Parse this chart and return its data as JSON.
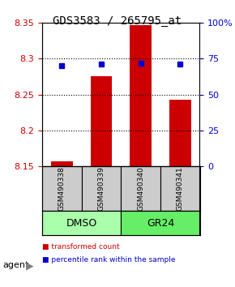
{
  "title": "GDS3583 / 265795_at",
  "samples": [
    "GSM490338",
    "GSM490339",
    "GSM490340",
    "GSM490341"
  ],
  "bar_base": 8.15,
  "bar_tops": [
    8.157,
    8.275,
    8.347,
    8.243
  ],
  "blue_dots": [
    70.0,
    71.5,
    72.0,
    71.0
  ],
  "ylim_left": [
    8.15,
    8.35
  ],
  "ylim_right": [
    0,
    100
  ],
  "yticks_left": [
    8.15,
    8.2,
    8.25,
    8.3,
    8.35
  ],
  "yticks_right": [
    0,
    25,
    50,
    75,
    100
  ],
  "ytick_labels_right": [
    "0",
    "25",
    "50",
    "75",
    "100%"
  ],
  "bar_color": "#cc0000",
  "dot_color": "#0000cc",
  "groups": [
    {
      "label": "DMSO",
      "samples": [
        0,
        1
      ],
      "color": "#aaffaa"
    },
    {
      "label": "GR24",
      "samples": [
        2,
        3
      ],
      "color": "#66ee66"
    }
  ],
  "group_row_label": "agent",
  "sample_box_color": "#cccccc",
  "grid_color": "#000000",
  "legend_items": [
    {
      "color": "#cc0000",
      "label": "transformed count"
    },
    {
      "color": "#0000cc",
      "label": "percentile rank within the sample"
    }
  ]
}
